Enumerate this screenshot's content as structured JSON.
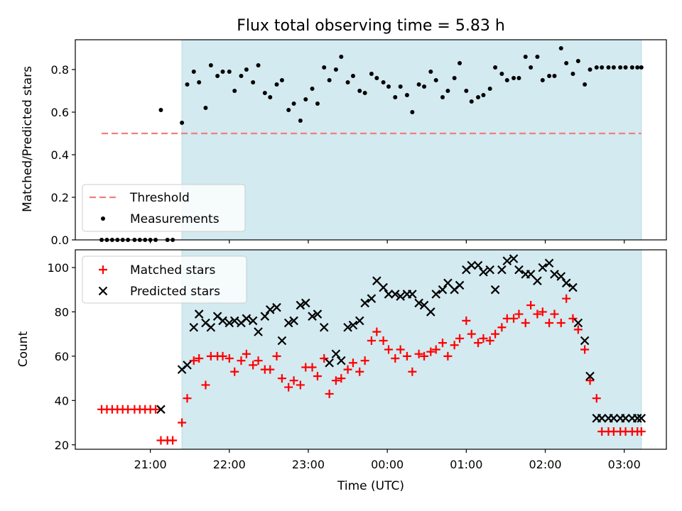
{
  "title": "Flux total observing time = 5.83 h",
  "colors": {
    "shade": "#d3eaf0",
    "shade_edge": "#b8dbe6",
    "threshold": "#f08080",
    "measurement": "#000000",
    "matched": "#ff0000",
    "predicted": "#000000"
  },
  "chart_data": [
    {
      "type": "scatter",
      "ylabel": "Matched/Predicted stars",
      "ylim": [
        0,
        0.94
      ],
      "yticks": [
        0.0,
        0.2,
        0.4,
        0.6,
        0.8
      ],
      "ytick_labels": [
        "0.0",
        "0.2",
        "0.4",
        "0.6",
        "0.8"
      ],
      "xlim": [
        "20:03",
        "03:32"
      ],
      "shaded_interval": [
        "21:24",
        "03:13"
      ],
      "threshold": {
        "name": "Threshold",
        "value": 0.5,
        "x_range": [
          "20:23",
          "03:13"
        ],
        "style": "dashed"
      },
      "legend": {
        "position": "lower-left",
        "entries": [
          "Threshold",
          "Measurements"
        ]
      },
      "series": [
        {
          "name": "Measurements",
          "marker": "dot",
          "x": [
            "20:23",
            "20:27",
            "20:31",
            "20:35",
            "20:39",
            "20:43",
            "20:48",
            "20:52",
            "20:56",
            "21:00",
            "21:04",
            "21:08",
            "21:13",
            "21:17",
            "21:24",
            "21:28",
            "21:33",
            "21:37",
            "21:42",
            "21:46",
            "21:51",
            "21:55",
            "22:00",
            "22:04",
            "22:09",
            "22:13",
            "22:18",
            "22:22",
            "22:27",
            "22:31",
            "22:36",
            "22:40",
            "22:45",
            "22:49",
            "22:54",
            "22:58",
            "23:03",
            "23:07",
            "23:12",
            "23:16",
            "23:21",
            "23:25",
            "23:30",
            "23:34",
            "23:39",
            "23:43",
            "23:48",
            "23:52",
            "23:57",
            "00:01",
            "00:06",
            "00:10",
            "00:15",
            "00:19",
            "00:24",
            "00:28",
            "00:33",
            "00:37",
            "00:42",
            "00:46",
            "00:51",
            "00:55",
            "01:00",
            "01:04",
            "01:09",
            "01:13",
            "01:18",
            "01:22",
            "01:27",
            "01:31",
            "01:36",
            "01:40",
            "01:45",
            "01:49",
            "01:54",
            "01:58",
            "02:03",
            "02:07",
            "02:12",
            "02:16",
            "02:21",
            "02:25",
            "02:30",
            "02:34",
            "02:39",
            "02:43",
            "02:48",
            "02:52",
            "02:57",
            "03:01",
            "03:06",
            "03:10",
            "03:13"
          ],
          "values": [
            0.0,
            0.0,
            0.0,
            0.0,
            0.0,
            0.0,
            0.0,
            0.0,
            0.0,
            0.0,
            0.0,
            0.61,
            0.0,
            0.0,
            0.55,
            0.73,
            0.79,
            0.74,
            0.62,
            0.82,
            0.77,
            0.79,
            0.79,
            0.7,
            0.77,
            0.8,
            0.74,
            0.82,
            0.69,
            0.67,
            0.73,
            0.75,
            0.61,
            0.64,
            0.56,
            0.66,
            0.71,
            0.64,
            0.81,
            0.75,
            0.8,
            0.86,
            0.74,
            0.77,
            0.7,
            0.69,
            0.78,
            0.76,
            0.74,
            0.72,
            0.67,
            0.72,
            0.68,
            0.6,
            0.73,
            0.72,
            0.79,
            0.75,
            0.67,
            0.7,
            0.76,
            0.83,
            0.7,
            0.65,
            0.67,
            0.68,
            0.71,
            0.81,
            0.78,
            0.75,
            0.76,
            0.76,
            0.86,
            0.81,
            0.86,
            0.75,
            0.77,
            0.77,
            0.9,
            0.83,
            0.78,
            0.84,
            0.73,
            0.8,
            0.81,
            0.81,
            0.81,
            0.81,
            0.81,
            0.81,
            0.81,
            0.81,
            0.81
          ]
        }
      ]
    },
    {
      "type": "scatter",
      "ylabel": "Count",
      "xlabel": "Time (UTC)",
      "ylim": [
        18,
        108
      ],
      "yticks": [
        20,
        40,
        60,
        80,
        100
      ],
      "ytick_labels": [
        "20",
        "40",
        "60",
        "80",
        "100"
      ],
      "xlim": [
        "20:03",
        "03:32"
      ],
      "xticks": [
        "21:00",
        "22:00",
        "23:00",
        "00:00",
        "01:00",
        "02:00",
        "03:00"
      ],
      "xtick_labels": [
        "21:00",
        "22:00",
        "23:00",
        "00:00",
        "01:00",
        "02:00",
        "03:00"
      ],
      "shaded_interval": [
        "21:24",
        "03:13"
      ],
      "legend": {
        "position": "top-left",
        "entries": [
          "Matched stars",
          "Predicted stars"
        ]
      },
      "series": [
        {
          "name": "Matched stars",
          "marker": "plus",
          "x": [
            "20:23",
            "20:27",
            "20:31",
            "20:35",
            "20:39",
            "20:43",
            "20:48",
            "20:52",
            "20:56",
            "21:00",
            "21:04",
            "21:08",
            "21:13",
            "21:17",
            "21:24",
            "21:28",
            "21:33",
            "21:37",
            "21:42",
            "21:46",
            "21:51",
            "21:55",
            "22:00",
            "22:04",
            "22:09",
            "22:13",
            "22:18",
            "22:22",
            "22:27",
            "22:31",
            "22:36",
            "22:40",
            "22:45",
            "22:49",
            "22:54",
            "22:58",
            "23:03",
            "23:07",
            "23:12",
            "23:16",
            "23:21",
            "23:25",
            "23:30",
            "23:34",
            "23:39",
            "23:43",
            "23:48",
            "23:52",
            "23:57",
            "00:01",
            "00:06",
            "00:10",
            "00:15",
            "00:19",
            "00:24",
            "00:28",
            "00:33",
            "00:37",
            "00:42",
            "00:46",
            "00:51",
            "00:55",
            "01:00",
            "01:04",
            "01:09",
            "01:13",
            "01:18",
            "01:22",
            "01:27",
            "01:31",
            "01:36",
            "01:40",
            "01:45",
            "01:49",
            "01:54",
            "01:58",
            "02:03",
            "02:07",
            "02:12",
            "02:16",
            "02:21",
            "02:25",
            "02:30",
            "02:34",
            "02:39",
            "02:43",
            "02:48",
            "02:52",
            "02:57",
            "03:01",
            "03:06",
            "03:10",
            "03:13"
          ],
          "values": [
            36,
            36,
            36,
            36,
            36,
            36,
            36,
            36,
            36,
            36,
            36,
            22,
            22,
            22,
            30,
            41,
            58,
            59,
            47,
            60,
            60,
            60,
            59,
            53,
            58,
            61,
            56,
            58,
            54,
            54,
            60,
            50,
            46,
            49,
            47,
            55,
            55,
            51,
            59,
            43,
            49,
            50,
            54,
            57,
            53,
            58,
            67,
            71,
            67,
            63,
            59,
            63,
            60,
            53,
            61,
            60,
            62,
            63,
            66,
            60,
            65,
            68,
            76,
            70,
            66,
            68,
            67,
            70,
            73,
            77,
            77,
            79,
            75,
            83,
            79,
            80,
            75,
            79,
            75,
            86,
            77,
            72,
            63,
            49,
            41,
            26,
            26,
            26,
            26,
            26,
            26,
            26,
            26
          ]
        },
        {
          "name": "Predicted stars",
          "marker": "x",
          "x": [
            "21:08",
            "21:24",
            "21:28",
            "21:33",
            "21:37",
            "21:42",
            "21:46",
            "21:51",
            "21:55",
            "22:00",
            "22:04",
            "22:09",
            "22:13",
            "22:18",
            "22:22",
            "22:27",
            "22:31",
            "22:36",
            "22:40",
            "22:45",
            "22:49",
            "22:54",
            "22:58",
            "23:03",
            "23:07",
            "23:12",
            "23:16",
            "23:21",
            "23:25",
            "23:30",
            "23:34",
            "23:39",
            "23:43",
            "23:48",
            "23:52",
            "23:57",
            "00:01",
            "00:06",
            "00:10",
            "00:15",
            "00:19",
            "00:24",
            "00:28",
            "00:33",
            "00:37",
            "00:42",
            "00:46",
            "00:51",
            "00:55",
            "01:00",
            "01:04",
            "01:09",
            "01:13",
            "01:18",
            "01:22",
            "01:27",
            "01:31",
            "01:36",
            "01:40",
            "01:45",
            "01:49",
            "01:54",
            "01:58",
            "02:03",
            "02:07",
            "02:12",
            "02:16",
            "02:21",
            "02:25",
            "02:30",
            "02:34",
            "02:39",
            "02:43",
            "02:48",
            "02:52",
            "02:57",
            "03:01",
            "03:06",
            "03:10",
            "03:13"
          ],
          "values": [
            36,
            54,
            56,
            73,
            79,
            75,
            73,
            78,
            76,
            75,
            76,
            75,
            77,
            76,
            71,
            78,
            81,
            82,
            67,
            75,
            76,
            83,
            84,
            78,
            79,
            73,
            57,
            61,
            58,
            73,
            74,
            76,
            84,
            86,
            94,
            91,
            88,
            88,
            87,
            88,
            88,
            84,
            83,
            80,
            88,
            90,
            93,
            90,
            92,
            99,
            101,
            101,
            98,
            99,
            90,
            99,
            103,
            104,
            99,
            97,
            97,
            94,
            100,
            102,
            97,
            96,
            93,
            91,
            75,
            67,
            51,
            32,
            32,
            32,
            32,
            32,
            32,
            32,
            32,
            32
          ]
        }
      ]
    }
  ]
}
